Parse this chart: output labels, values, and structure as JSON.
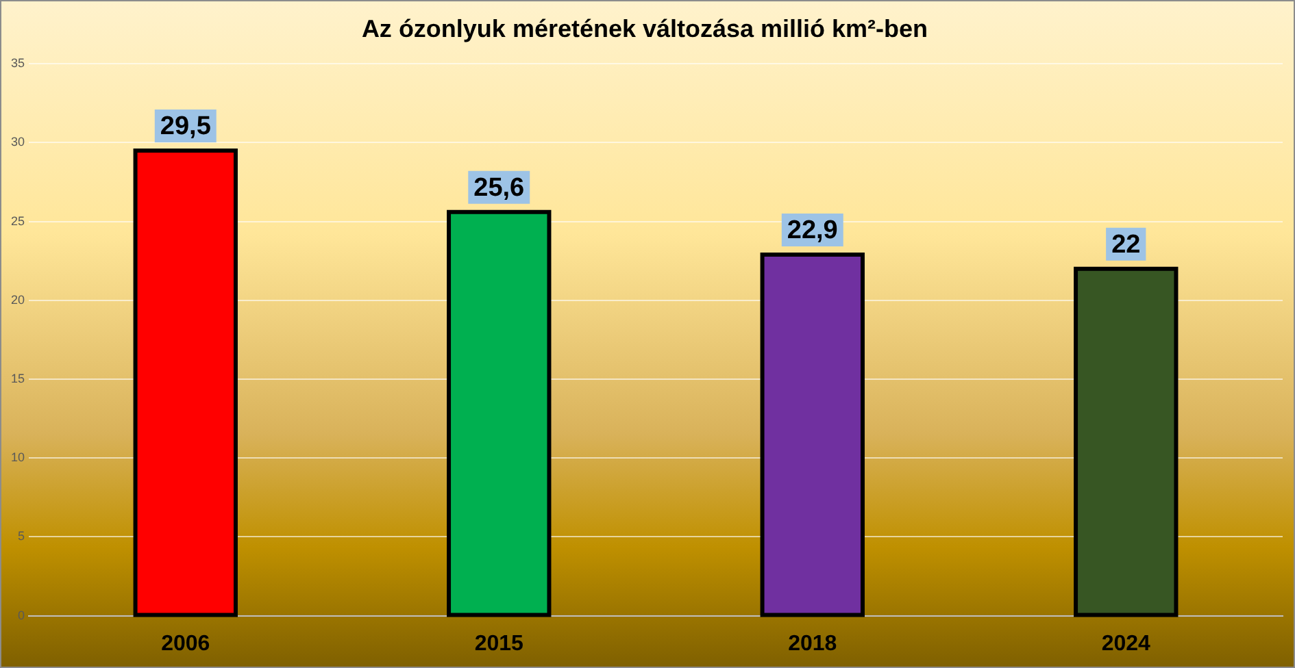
{
  "chart_data": {
    "type": "bar",
    "title": "Az ózonlyuk méretének változása millió km²-ben",
    "categories": [
      "2006",
      "2015",
      "2018",
      "2024"
    ],
    "values": [
      29.5,
      25.6,
      22.9,
      22
    ],
    "value_labels": [
      "29,5",
      "25,6",
      "22,9",
      "22"
    ],
    "colors": [
      "#ff0000",
      "#00b050",
      "#7030a0",
      "#375623"
    ],
    "ylim": [
      0,
      35
    ],
    "yticks": [
      0,
      5,
      10,
      15,
      20,
      25,
      30,
      35
    ],
    "grid": "y",
    "legend": false
  }
}
